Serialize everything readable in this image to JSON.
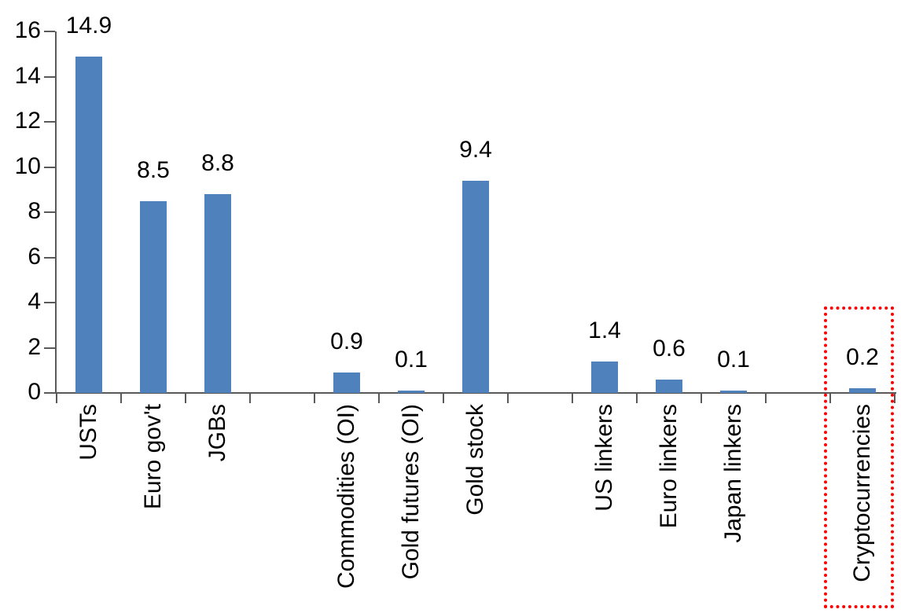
{
  "chart_data": {
    "type": "bar",
    "title": "",
    "xlabel": "",
    "ylabel": "",
    "ylim": [
      0,
      16
    ],
    "yticks": [
      0,
      2,
      4,
      6,
      8,
      10,
      12,
      14,
      16
    ],
    "grid": false,
    "legend": false,
    "num_slots": 13,
    "bar_color": "#4f81bd",
    "axis_color": "#595959",
    "text_color": "#000000",
    "highlight_color": "#ff0000",
    "bars": [
      {
        "label": "USTs",
        "value": 14.9,
        "value_label": "14.9",
        "slot": 0,
        "highlighted": false
      },
      {
        "label": "Euro gov't",
        "value": 8.5,
        "value_label": "8.5",
        "slot": 1,
        "highlighted": false
      },
      {
        "label": "JGBs",
        "value": 8.8,
        "value_label": "8.8",
        "slot": 2,
        "highlighted": false
      },
      {
        "label": "Commodities (OI)",
        "value": 0.9,
        "value_label": "0.9",
        "slot": 4,
        "highlighted": false
      },
      {
        "label": "Gold futures (OI)",
        "value": 0.1,
        "value_label": "0.1",
        "slot": 5,
        "highlighted": false
      },
      {
        "label": "Gold stock",
        "value": 9.4,
        "value_label": "9.4",
        "slot": 6,
        "highlighted": false
      },
      {
        "label": "US linkers",
        "value": 1.4,
        "value_label": "1.4",
        "slot": 8,
        "highlighted": false
      },
      {
        "label": "Euro linkers",
        "value": 0.6,
        "value_label": "0.6",
        "slot": 9,
        "highlighted": false
      },
      {
        "label": "Japan linkers",
        "value": 0.1,
        "value_label": "0.1",
        "slot": 10,
        "highlighted": false
      },
      {
        "label": "Cryptocurrencies",
        "value": 0.2,
        "value_label": "0.2",
        "slot": 12,
        "highlighted": true
      }
    ]
  }
}
